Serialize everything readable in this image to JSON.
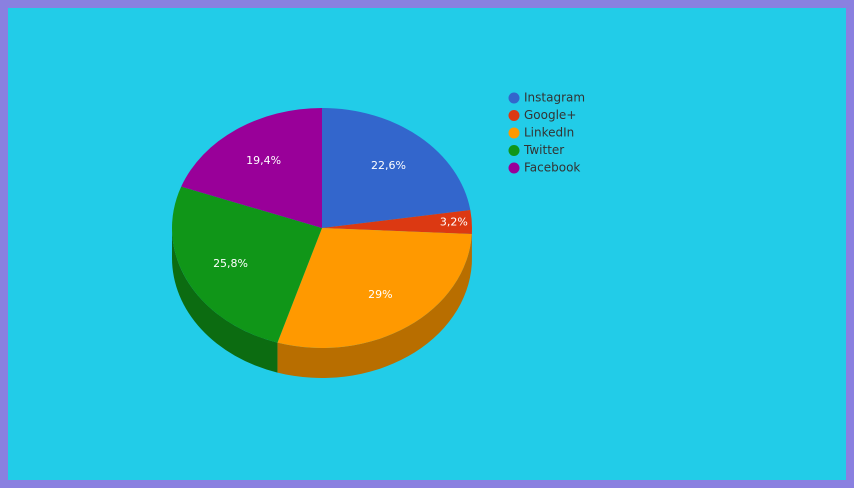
{
  "chart_data": {
    "type": "pie",
    "three_d": true,
    "categories": [
      "Instagram",
      "Google+",
      "LinkedIn",
      "Twitter",
      "Facebook"
    ],
    "values": [
      22.6,
      3.2,
      29,
      25.8,
      19.4
    ],
    "value_labels": [
      "22,6%",
      "3,2%",
      "29%",
      "25,8%",
      "19,4%"
    ],
    "colors": [
      "#3366cc",
      "#dc3912",
      "#ff9900",
      "#109618",
      "#990099"
    ]
  }
}
